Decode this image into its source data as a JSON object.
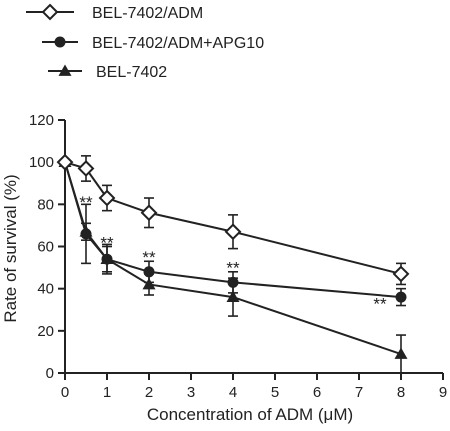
{
  "chart_data": {
    "type": "line",
    "xlabel": "Concentration of ADM (μM)",
    "ylabel": "Rate of survival (%)",
    "xlim": [
      0,
      9
    ],
    "ylim": [
      0,
      120
    ],
    "xticks": [
      0,
      1,
      2,
      3,
      4,
      5,
      6,
      7,
      8,
      9
    ],
    "yticks": [
      0,
      20,
      40,
      60,
      80,
      100,
      120
    ],
    "x_tick_labels": [
      "0",
      "1",
      "2",
      "3",
      "4",
      "5",
      "6",
      "7",
      "8",
      "9"
    ],
    "y_tick_labels": [
      "0",
      "20",
      "40",
      "60",
      "80",
      "100",
      "120"
    ],
    "legend_position": "top-left",
    "grid": false,
    "x": [
      0,
      0.5,
      1,
      2,
      4,
      8
    ],
    "series": [
      {
        "name": "BEL-7402/ADM",
        "marker": "open-diamond",
        "values": [
          100,
          97,
          83,
          76,
          67,
          47
        ],
        "errors": [
          0,
          6,
          6,
          7,
          8,
          5
        ]
      },
      {
        "name": "BEL-7402/ADM+APG10",
        "marker": "filled-circle",
        "values": [
          100,
          66,
          54,
          48,
          43,
          36
        ],
        "errors": [
          0,
          14,
          6,
          5,
          5,
          4
        ]
      },
      {
        "name": "BEL-7402",
        "marker": "filled-triangle",
        "values": [
          100,
          67,
          54,
          42,
          36,
          9
        ],
        "errors": [
          0,
          4,
          7,
          5,
          9,
          9
        ]
      }
    ],
    "annotations": [
      {
        "text": "**",
        "x": 0.5,
        "y": 81
      },
      {
        "text": "**",
        "x": 1,
        "y": 62
      },
      {
        "text": "**",
        "x": 2,
        "y": 55
      },
      {
        "text": "**",
        "x": 4,
        "y": 50
      },
      {
        "text": "**",
        "x": 7.5,
        "y": 33
      }
    ]
  }
}
